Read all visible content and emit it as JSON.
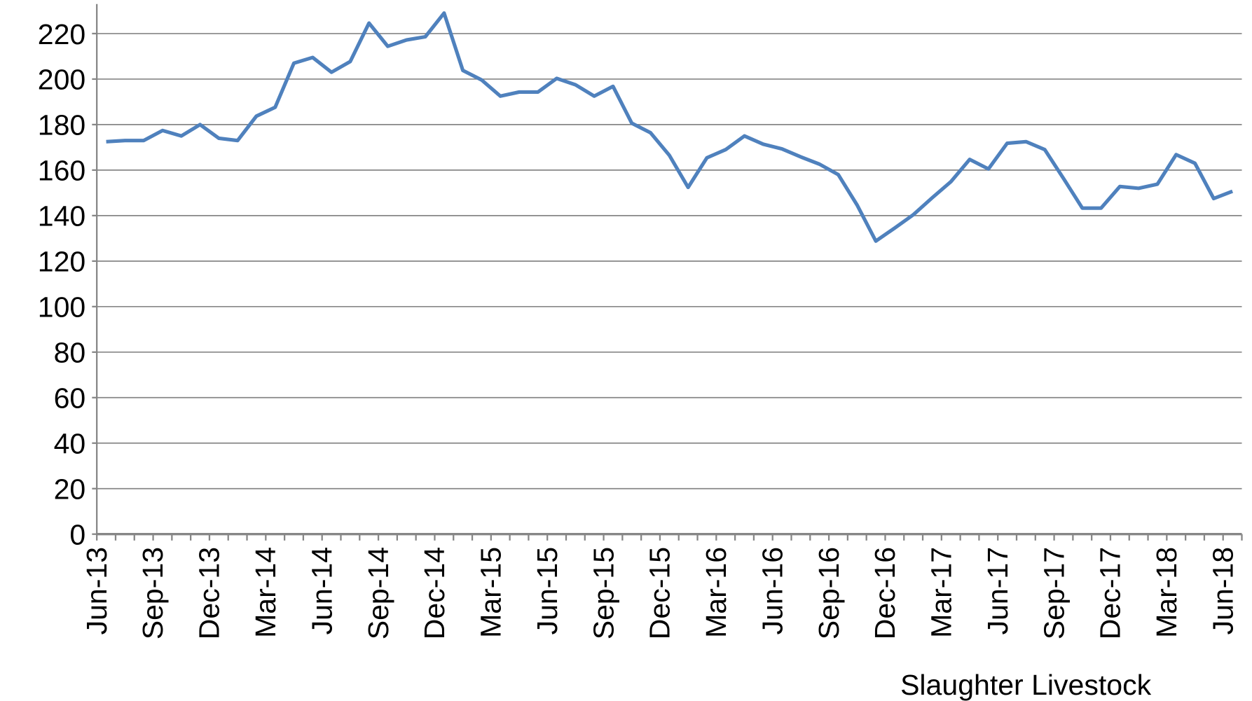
{
  "chart_data": {
    "type": "line",
    "categories": [
      "Jun-13",
      null,
      null,
      "Sep-13",
      null,
      null,
      "Dec-13",
      null,
      null,
      "Mar-14",
      null,
      null,
      "Jun-14",
      null,
      null,
      "Sep-14",
      null,
      null,
      "Dec-14",
      null,
      null,
      "Mar-15",
      null,
      null,
      "Jun-15",
      null,
      null,
      "Sep-15",
      null,
      null,
      "Dec-15",
      null,
      null,
      "Mar-16",
      null,
      null,
      "Jun-16",
      null,
      null,
      "Sep-16",
      null,
      null,
      "Dec-16",
      null,
      null,
      "Mar-17",
      null,
      null,
      "Jun-17",
      null,
      null,
      "Sep-17",
      null,
      null,
      "Dec-17",
      null,
      null,
      "Mar-18",
      null,
      null,
      "Jun-18"
    ],
    "series": [
      {
        "name": "Slaughter Livestock",
        "color": "#4f81bd",
        "values": [
          172.5,
          173,
          173,
          177.4,
          175,
          180,
          174,
          173,
          183.7,
          187.6,
          207,
          209.5,
          203,
          207.7,
          224.6,
          214.4,
          217.2,
          218.6,
          229,
          203.8,
          199.6,
          192.5,
          194.3,
          194.3,
          200.3,
          197.5,
          192.5,
          196.8,
          180.6,
          176.4,
          166.5,
          152.4,
          165.4,
          169,
          175,
          171.4,
          169.3,
          165.8,
          162.6,
          158,
          144.7,
          128.8,
          134.5,
          140.4,
          147.8,
          154.9,
          164.7,
          160.5,
          171.8,
          172.5,
          169,
          156.3,
          143.3,
          143.3,
          152.8,
          152,
          153.8,
          166.8,
          163,
          147.5,
          150.7
        ]
      }
    ],
    "ylim": [
      0,
      233
    ],
    "yticks": [
      0,
      20,
      40,
      60,
      80,
      100,
      120,
      140,
      160,
      180,
      200,
      220
    ],
    "grid": true
  }
}
